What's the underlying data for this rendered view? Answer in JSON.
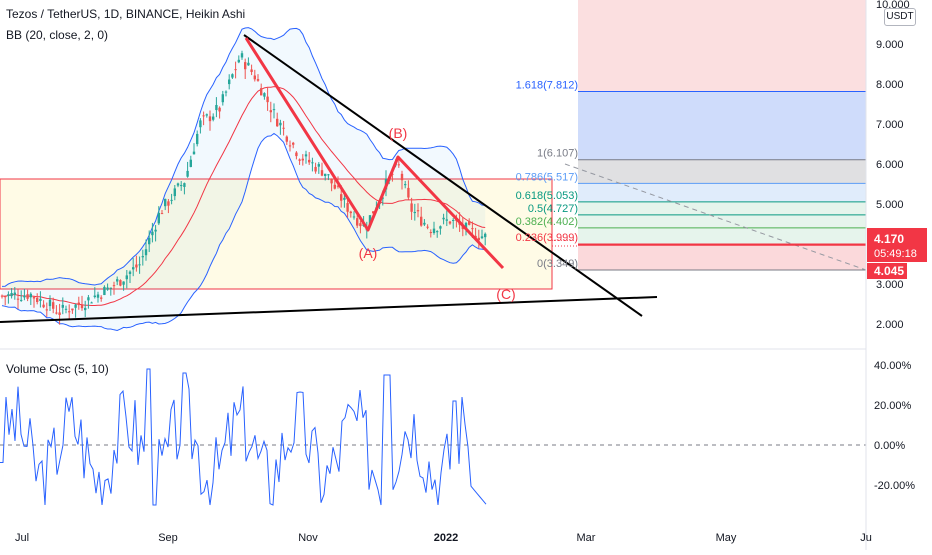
{
  "header": {
    "title": "Tezos / TetherUS, 1D, BINANCE, Heikin Ashi",
    "indicator": "BB (20, close, 2, 0)",
    "oscillator": "Volume Osc (5, 10)",
    "currency": "USDT"
  },
  "colors": {
    "up": "#26a69a",
    "down": "#ef5350",
    "bb": "#2962ff",
    "basis": "#f23645",
    "trend": "#000000",
    "wave": "#f23645",
    "osc": "#2962ff",
    "box": "#f23645"
  },
  "chart_data": [
    {
      "type": "candlestick",
      "price_axis": {
        "ticks": [
          "10.000",
          "9.000",
          "8.000",
          "7.000",
          "6.000",
          "5.000",
          "4.000",
          "3.000",
          "2.000"
        ]
      },
      "time_axis": {
        "ticks": [
          "Jul",
          "Sep",
          "Nov",
          "2022",
          "Mar",
          "May",
          "Ju"
        ]
      },
      "last_price": "4.170",
      "countdown": "05:49:18",
      "low_label": "4.045",
      "fib_levels": [
        {
          "label": "1.618(7.812)",
          "value": 7.812
        },
        {
          "label": "1(6.107)",
          "value": 6.107
        },
        {
          "label": "0.786(5.517)",
          "value": 5.517
        },
        {
          "label": "0.618(5.053)",
          "value": 5.053
        },
        {
          "label": "0.5(4.727)",
          "value": 4.727
        },
        {
          "label": "0.382(4.402)",
          "value": 4.402
        },
        {
          "label": "0.236(3.999)",
          "value": 3.999
        },
        {
          "label": "0(3.349)",
          "value": 3.349
        }
      ],
      "wave_labels": [
        "(A)",
        "(B)",
        "(C)"
      ]
    },
    {
      "type": "line",
      "name": "Volume Osc (5, 10)",
      "y_axis": {
        "ticks": [
          "40.00%",
          "20.00%",
          "0.00%",
          "-20.00%"
        ]
      }
    }
  ]
}
